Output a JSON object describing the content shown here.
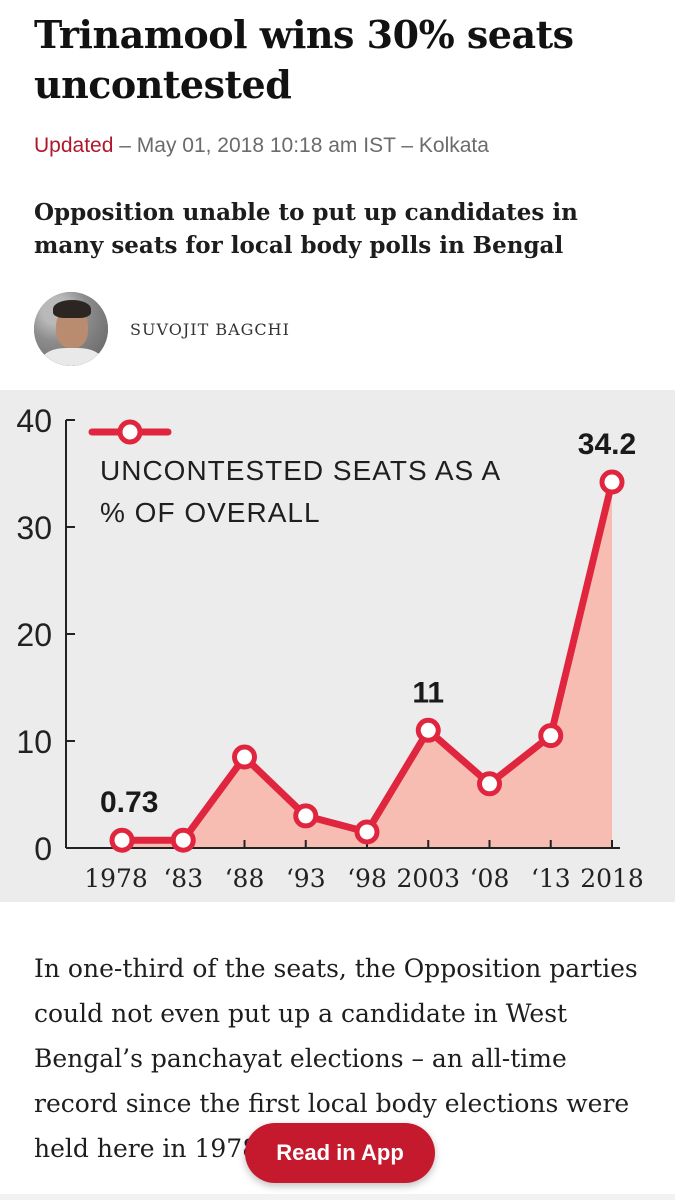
{
  "article": {
    "headline": "Trinamool wins 30% seats uncontested",
    "meta": {
      "updated_label": "Updated",
      "separator": " – ",
      "datetime": "May 01, 2018 10:18 am IST",
      "location": "Kolkata"
    },
    "subheadline": "Opposition unable to put up candidates in many seats for local body polls in Bengal",
    "author": {
      "name": "SUVOJIT BAGCHI"
    },
    "body": "In one-third of the seats, the Opposition parties could not even put up a candidate in West Bengal’s panchayat elections – an all-time record since the first local body elections were held here in 1978."
  },
  "read_in_app_button": {
    "label": "Read in App"
  },
  "colors": {
    "accent": "#b0172b",
    "line": "#e0263f",
    "area": "#f7bdb3",
    "chart_bg": "#ececec"
  },
  "chart_data": {
    "type": "line",
    "legend": "UNCONTESTED SEATS AS A % OF OVERALL",
    "legend_lines": [
      "UNCONTESTED SEATS AS A",
      "% OF OVERALL"
    ],
    "categories": [
      "1978",
      "‘83",
      "‘88",
      "‘93",
      "‘98",
      "2003",
      "‘08",
      "‘13",
      "2018"
    ],
    "values": [
      0.73,
      0.73,
      8.5,
      3,
      1.5,
      11,
      6,
      10.5,
      34.2
    ],
    "data_labels": [
      {
        "index": 0,
        "text": "0.73"
      },
      {
        "index": 5,
        "text": "11"
      },
      {
        "index": 8,
        "text": "34.2"
      }
    ],
    "ylim": [
      0,
      40
    ],
    "yticks": [
      0,
      10,
      20,
      30,
      40
    ],
    "ytick_labels": [
      "0",
      "10",
      "20",
      "30",
      "40"
    ],
    "grid": false,
    "legend_position": "top-left",
    "area_fill": true
  }
}
